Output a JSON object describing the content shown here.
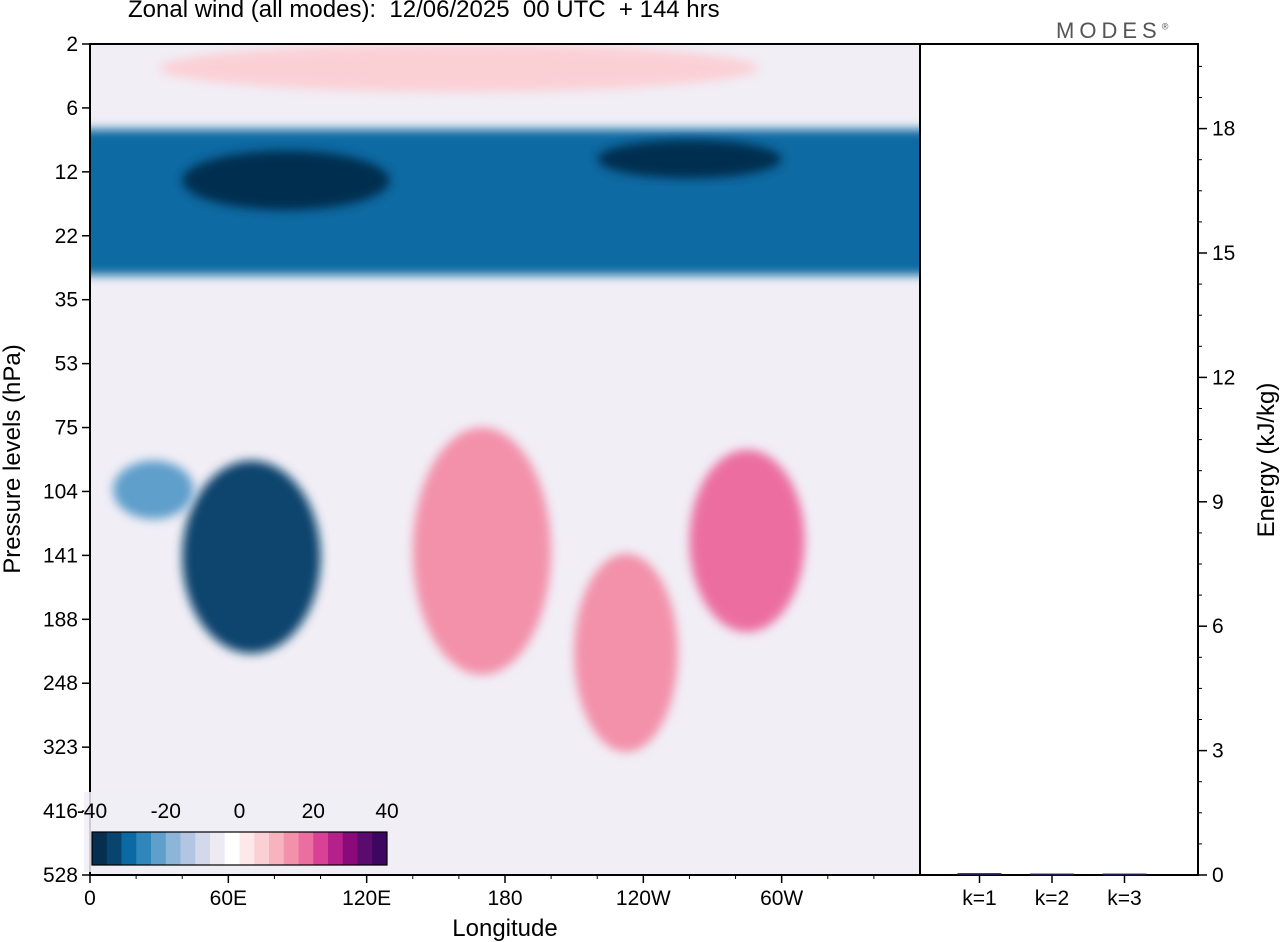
{
  "header": {
    "title": "Zonal wind (all modes):  12/06/2025  00 UTC  + 144 hrs",
    "logo": "MODES"
  },
  "chart_data": [
    {
      "type": "heatmap",
      "title": "Zonal wind (all modes):  12/06/2025  00 UTC  + 144 hrs",
      "xlabel": "Longitude",
      "ylabel": "Pressure levels (hPa)",
      "x_ticks": [
        "0",
        "60E",
        "120E",
        "180",
        "120W",
        "60W"
      ],
      "y_ticks": [
        "2",
        "6",
        "12",
        "22",
        "35",
        "53",
        "75",
        "104",
        "141",
        "188",
        "248",
        "323",
        "416",
        "528"
      ],
      "colorbar": {
        "tick_labels": [
          "-40",
          "-20",
          "0",
          "20",
          "40"
        ],
        "range": [
          -40,
          40
        ],
        "colors": [
          "#062e4f",
          "#08456e",
          "#0b6aa3",
          "#2f86ba",
          "#5e9fcb",
          "#8db5d7",
          "#b3c5e1",
          "#d3d8ea",
          "#eeeaf4",
          "#ffffff",
          "#fde8ea",
          "#fbd0d5",
          "#f8b4be",
          "#f391aa",
          "#ec6ea0",
          "#d94197",
          "#b5208a",
          "#8a0a7a",
          "#5b0a6e",
          "#3d0761"
        ]
      },
      "features": [
        {
          "description": "stratospheric easterly band",
          "lon_range": [
            0,
            360
          ],
          "p_range": [
            8,
            30
          ],
          "value": -30
        },
        {
          "description": "strong easterly core",
          "lon_range": [
            40,
            130
          ],
          "p_range": [
            10,
            18
          ],
          "value": -38
        },
        {
          "description": "strong easterly core",
          "lon_range": [
            220,
            300
          ],
          "p_range": [
            9,
            13
          ],
          "value": -40
        },
        {
          "description": "weak westerly upper layer",
          "lon_range": [
            30,
            290
          ],
          "p_range": [
            2,
            5
          ],
          "value": 6
        },
        {
          "description": "easterly jet core",
          "lon_range": [
            40,
            100
          ],
          "p_range": [
            90,
            220
          ],
          "value": -35
        },
        {
          "description": "secondary easterly core",
          "lon_range": [
            10,
            45
          ],
          "p_range": [
            90,
            120
          ],
          "value": -22
        },
        {
          "description": "westerly region",
          "lon_range": [
            140,
            200
          ],
          "p_range": [
            75,
            240
          ],
          "value": 12
        },
        {
          "description": "westerly region",
          "lon_range": [
            210,
            255
          ],
          "p_range": [
            140,
            330
          ],
          "value": 14
        },
        {
          "description": "westerly maximum",
          "lon_range": [
            260,
            310
          ],
          "p_range": [
            85,
            200
          ],
          "value": 18
        }
      ]
    },
    {
      "type": "bar",
      "categories": [
        "k=1",
        "k=2",
        "k=3"
      ],
      "values": [
        0.02,
        0.01,
        0.01
      ],
      "ylabel": "Energy (kJ/kg)",
      "ylim": [
        0,
        20
      ],
      "y_ticks": [
        "0",
        "3",
        "6",
        "9",
        "12",
        "15",
        "18"
      ]
    }
  ]
}
